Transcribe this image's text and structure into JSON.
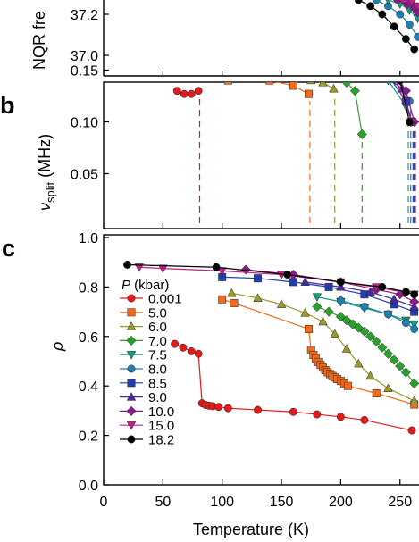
{
  "panel_letters": {
    "b": "b",
    "c": "c"
  },
  "axis_labels": {
    "a_y": "NQR fre",
    "b_y_main": "ν",
    "b_y_sub": "split",
    "b_y_unit": " (MHz)",
    "c_y": "ρ",
    "x": "Temperature (K)"
  },
  "legend": {
    "title_symbol": "P",
    "title_unit": " (kbar)",
    "entries": [
      "0.001",
      "5.0",
      "6.0",
      "7.0",
      "7.5",
      "8.0",
      "8.5",
      "9.0",
      "10.0",
      "15.0",
      "18.2"
    ]
  },
  "series_style": [
    {
      "color": "#e31a1c",
      "marker": "circle"
    },
    {
      "color": "#f26a1b",
      "marker": "square"
    },
    {
      "color": "#9a9a2a",
      "marker": "triangle-up"
    },
    {
      "color": "#2ca02c",
      "marker": "diamond"
    },
    {
      "color": "#169a7e",
      "marker": "triangle-down"
    },
    {
      "color": "#1f7fb0",
      "marker": "circle"
    },
    {
      "color": "#1f3fb0",
      "marker": "square"
    },
    {
      "color": "#4a2a9a",
      "marker": "triangle-up"
    },
    {
      "color": "#8a1a8a",
      "marker": "diamond"
    },
    {
      "color": "#c0208a",
      "marker": "triangle-down"
    },
    {
      "color": "#000000",
      "marker": "circle"
    }
  ],
  "chart_data": [
    {
      "panel": "a",
      "type": "line",
      "ylabel": "NQR fre",
      "yticks": [
        37.0,
        37.2
      ],
      "ylim": [
        36.9,
        37.28
      ],
      "xlim": [
        0,
        265
      ],
      "series": [
        {
          "x": [
            215,
            225,
            235,
            245,
            255,
            262
          ],
          "y": [
            37.27,
            37.24,
            37.2,
            37.14,
            37.08,
            37.03
          ]
        },
        {
          "x": [
            230,
            240,
            250,
            258,
            265
          ],
          "y": [
            37.27,
            37.24,
            37.2,
            37.15,
            37.09
          ]
        },
        {
          "x": [
            240,
            250,
            258,
            265
          ],
          "y": [
            37.27,
            37.25,
            37.22,
            37.18
          ]
        },
        {
          "x": [
            248,
            256,
            262,
            265
          ],
          "y": [
            37.27,
            37.25,
            37.23,
            37.21
          ]
        },
        {
          "x": [
            252,
            260,
            265
          ],
          "y": [
            37.27,
            37.26,
            37.24
          ]
        }
      ]
    },
    {
      "panel": "b",
      "type": "line",
      "ylabel": "νsplit (MHz)",
      "yticks": [
        0.05,
        0.1,
        0.15
      ],
      "ylim": [
        0.0,
        0.175
      ],
      "xlim": [
        0,
        265
      ],
      "series": [
        {
          "name": "0.001",
          "x": [
            62,
            68,
            74,
            80
          ],
          "y": [
            0.13,
            0.127,
            0.127,
            0.13
          ],
          "transition": 81
        },
        {
          "name": "5.0",
          "x": [
            98,
            105,
            140,
            160,
            173
          ],
          "y": [
            0.145,
            0.14,
            0.14,
            0.135,
            0.127
          ],
          "transition": 174
        },
        {
          "name": "6.0",
          "x": [
            108,
            130,
            155,
            175,
            185,
            194
          ],
          "y": [
            0.145,
            0.145,
            0.145,
            0.14,
            0.138,
            0.132
          ],
          "transition": 195
        },
        {
          "name": "7.0",
          "x": [
            150,
            170,
            190,
            205,
            212,
            218
          ],
          "y": [
            0.15,
            0.148,
            0.143,
            0.138,
            0.13,
            0.088
          ],
          "transition": 218
        },
        {
          "name": "7.5",
          "x": [
            170,
            195,
            220,
            240,
            255
          ],
          "y": [
            0.152,
            0.15,
            0.148,
            0.14,
            0.115
          ],
          "transition": 257
        },
        {
          "name": "8.0",
          "x": [
            185,
            210,
            235,
            250,
            258
          ],
          "y": [
            0.152,
            0.152,
            0.148,
            0.14,
            0.12
          ],
          "transition": 259
        },
        {
          "name": "8.5",
          "x": [
            85,
            130,
            170,
            210,
            240,
            255,
            260
          ],
          "y": [
            0.155,
            0.157,
            0.155,
            0.152,
            0.145,
            0.12,
            0.1
          ],
          "transition": 261
        },
        {
          "name": "9.0",
          "x": [
            95,
            140,
            190,
            230,
            252,
            260
          ],
          "y": [
            0.156,
            0.156,
            0.155,
            0.15,
            0.132,
            0.1
          ],
          "transition": 262
        },
        {
          "name": "10.0",
          "x": [
            100,
            150,
            200,
            240,
            255,
            262
          ],
          "y": [
            0.157,
            0.157,
            0.156,
            0.148,
            0.13,
            0.1
          ],
          "transition": 263
        },
        {
          "name": "15.0",
          "x": [
            30,
            45,
            80,
            140,
            200,
            245,
            260
          ],
          "y": [
            0.152,
            0.152,
            0.157,
            0.158,
            0.157,
            0.145,
            0.1
          ]
        },
        {
          "name": "18.2",
          "x": [
            20,
            95,
            175,
            230,
            250,
            258
          ],
          "y": [
            0.16,
            0.16,
            0.158,
            0.152,
            0.14,
            0.1
          ]
        }
      ]
    },
    {
      "panel": "c",
      "type": "line",
      "ylabel": "ρ",
      "xlabel": "Temperature (K)",
      "xlim": [
        0,
        265
      ],
      "ylim": [
        0.0,
        1.0
      ],
      "xticks": [
        0,
        50,
        100,
        150,
        200,
        250
      ],
      "yticks": [
        0.0,
        0.2,
        0.4,
        0.6,
        0.8,
        1.0
      ],
      "series": [
        {
          "name": "0.001",
          "x": [
            60,
            67,
            74,
            80,
            83,
            86,
            89,
            92,
            97,
            105,
            130,
            160,
            180,
            200,
            220,
            260
          ],
          "y": [
            0.57,
            0.555,
            0.54,
            0.53,
            0.33,
            0.323,
            0.32,
            0.318,
            0.315,
            0.31,
            0.303,
            0.295,
            0.285,
            0.275,
            0.262,
            0.22
          ]
        },
        {
          "name": "5.0",
          "x": [
            100,
            110,
            173,
            175,
            177,
            179,
            181,
            183,
            185,
            187,
            189,
            191,
            193,
            195,
            197,
            200,
            203,
            206,
            230,
            262
          ],
          "y": [
            0.75,
            0.735,
            0.63,
            0.545,
            0.525,
            0.51,
            0.497,
            0.485,
            0.474,
            0.464,
            0.455,
            0.448,
            0.44,
            0.434,
            0.428,
            0.42,
            0.41,
            0.4,
            0.37,
            0.325
          ]
        },
        {
          "name": "6.0",
          "x": [
            108,
            130,
            150,
            170,
            185,
            195,
            205,
            215,
            225,
            240,
            262
          ],
          "y": [
            0.775,
            0.755,
            0.73,
            0.695,
            0.66,
            0.61,
            0.55,
            0.49,
            0.44,
            0.39,
            0.34
          ]
        },
        {
          "name": "7.0",
          "x": [
            180,
            190,
            200,
            205,
            210,
            215,
            220,
            225,
            230,
            235,
            240,
            245,
            250,
            255,
            262
          ],
          "y": [
            0.72,
            0.7,
            0.68,
            0.665,
            0.65,
            0.635,
            0.62,
            0.6,
            0.58,
            0.555,
            0.53,
            0.505,
            0.48,
            0.455,
            0.41
          ]
        },
        {
          "name": "7.5",
          "x": [
            180,
            200,
            220,
            240,
            255,
            262
          ],
          "y": [
            0.76,
            0.74,
            0.715,
            0.69,
            0.665,
            0.65
          ]
        },
        {
          "name": "8.0",
          "x": [
            200,
            220,
            240,
            255,
            262
          ],
          "y": [
            0.745,
            0.72,
            0.69,
            0.655,
            0.63
          ]
        },
        {
          "name": "8.5",
          "x": [
            100,
            130,
            160,
            190,
            220,
            245,
            262
          ],
          "y": [
            0.84,
            0.835,
            0.82,
            0.8,
            0.77,
            0.73,
            0.7
          ]
        },
        {
          "name": "9.0",
          "x": [
            170,
            200,
            225,
            245,
            262
          ],
          "y": [
            0.82,
            0.8,
            0.78,
            0.75,
            0.72
          ]
        },
        {
          "name": "10.0",
          "x": [
            120,
            160,
            200,
            230,
            250,
            262
          ],
          "y": [
            0.87,
            0.85,
            0.82,
            0.79,
            0.77,
            0.74
          ]
        },
        {
          "name": "15.0",
          "x": [
            30,
            50,
            100,
            150,
            200,
            230,
            262
          ],
          "y": [
            0.88,
            0.875,
            0.865,
            0.85,
            0.82,
            0.8,
            0.77
          ]
        },
        {
          "name": "18.2",
          "x": [
            20,
            95,
            155,
            200,
            235,
            255,
            262
          ],
          "y": [
            0.89,
            0.88,
            0.85,
            0.82,
            0.8,
            0.78,
            0.77
          ]
        }
      ]
    }
  ]
}
